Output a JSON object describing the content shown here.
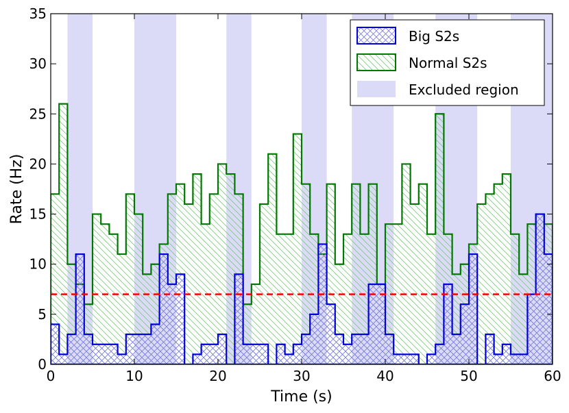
{
  "chart_data": {
    "type": "step",
    "xlabel": "Time (s)",
    "ylabel": "Rate (Hz)",
    "xlim": [
      0,
      60
    ],
    "ylim": [
      0,
      35
    ],
    "xticks": [
      0,
      10,
      20,
      30,
      40,
      50,
      60
    ],
    "yticks": [
      0,
      5,
      10,
      15,
      20,
      25,
      30,
      35
    ],
    "bin_width": 1,
    "excluded_regions": [
      [
        2,
        5
      ],
      [
        10,
        15
      ],
      [
        21,
        24
      ],
      [
        30,
        33
      ],
      [
        36,
        41
      ],
      [
        46,
        51
      ],
      [
        55,
        60
      ]
    ],
    "threshold": {
      "value": 7,
      "color": "#ff0000",
      "style": "dashed"
    },
    "series": [
      {
        "name": "Big S2s",
        "color": "#0000dd",
        "hatch": "crosshatch",
        "values": [
          4,
          1,
          3,
          11,
          3,
          2,
          2,
          2,
          1,
          3,
          3,
          3,
          4,
          11,
          8,
          9,
          0,
          1,
          2,
          2,
          3,
          0,
          9,
          2,
          2,
          2,
          0,
          2,
          1,
          2,
          3,
          5,
          12,
          6,
          3,
          2,
          3,
          3,
          8,
          8,
          3,
          1,
          1,
          1,
          0,
          1,
          2,
          8,
          3,
          6,
          11,
          0,
          3,
          1,
          2,
          1,
          1,
          7,
          15,
          11
        ]
      },
      {
        "name": "Normal S2s",
        "color": "#007700",
        "hatch": "diagonal",
        "values": [
          17,
          26,
          10,
          8,
          6,
          15,
          14,
          13,
          11,
          17,
          15,
          9,
          10,
          12,
          17,
          18,
          16,
          19,
          14,
          17,
          20,
          19,
          17,
          6,
          8,
          16,
          21,
          13,
          13,
          23,
          18,
          13,
          11,
          18,
          10,
          13,
          18,
          13,
          18,
          8,
          14,
          14,
          20,
          16,
          18,
          13,
          25,
          13,
          9,
          10,
          12,
          16,
          17,
          18,
          19,
          13,
          9,
          14,
          15,
          14
        ]
      }
    ],
    "legend": {
      "placement": "top-right",
      "entries": [
        "Big S2s",
        "Normal S2s",
        "Excluded region"
      ]
    }
  }
}
